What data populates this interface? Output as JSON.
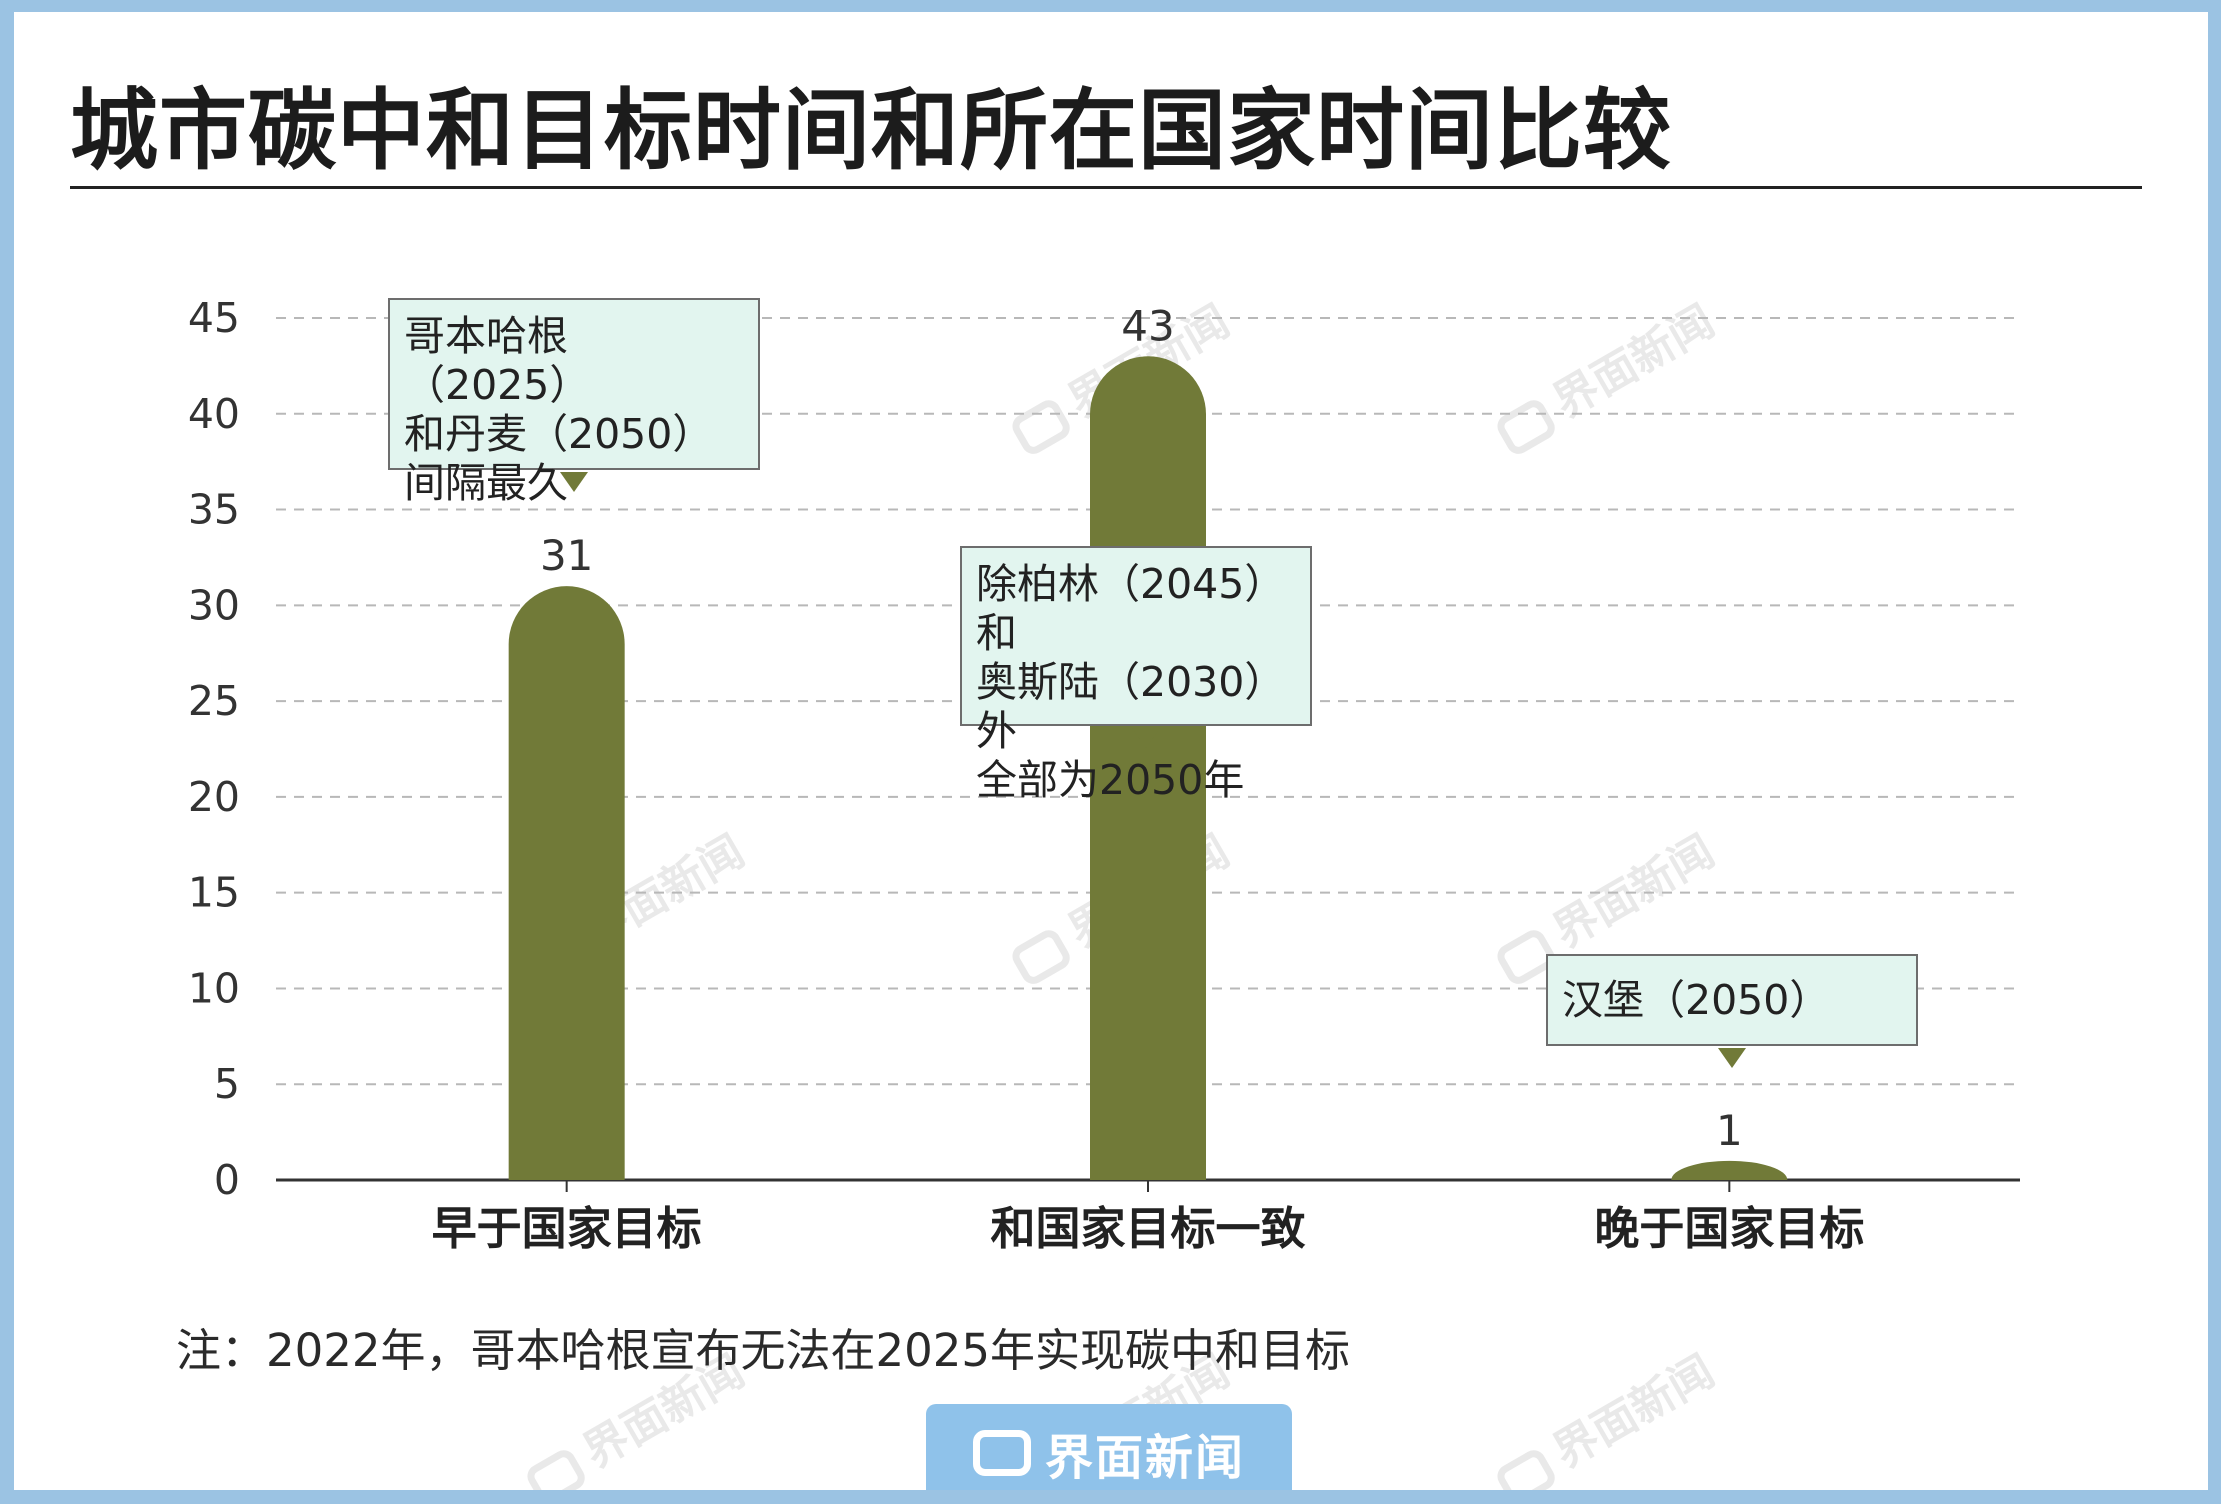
{
  "title": "城市碳中和目标时间和所在国家时间比较",
  "note": "注：2022年，哥本哈根宣布无法在2025年实现碳中和目标",
  "watermark": "界面新闻",
  "brand": "界面新闻",
  "colors": {
    "bar": "#717a38",
    "callout_fill": "#e2f5ef",
    "frame": "#9bc3e3"
  },
  "callouts": [
    {
      "text": "哥本哈根（2025）\n和丹麦（2050）\n间隔最久"
    },
    {
      "text": "除柏林（2045）和\n奥斯陆（2030）外\n全部为2050年"
    },
    {
      "text": "汉堡（2050）"
    }
  ],
  "chart_data": {
    "type": "bar",
    "categories": [
      "早于国家目标",
      "和国家目标一致",
      "晚于国家目标"
    ],
    "values": [
      31,
      43,
      1
    ],
    "ylim": [
      0,
      45
    ],
    "yticks": [
      0,
      5,
      10,
      15,
      20,
      25,
      30,
      35,
      40,
      45
    ],
    "grid": true,
    "xlabel": "",
    "ylabel": ""
  }
}
